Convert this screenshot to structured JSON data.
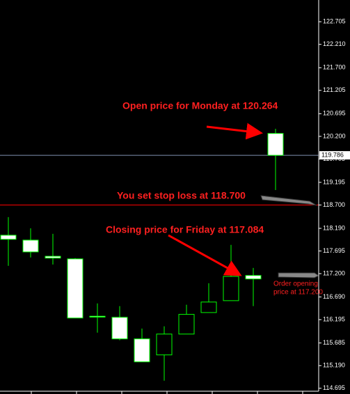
{
  "chart_data": {
    "type": "candlestick",
    "categories": [
      null,
      null,
      null,
      null,
      null,
      null,
      null,
      null,
      null,
      null,
      null,
      null,
      null
    ],
    "open": [
      118.04,
      117.933,
      117.58,
      117.523,
      116.27,
      116.246,
      115.775,
      115.425,
      115.88,
      116.35,
      116.61,
      117.16,
      120.264
    ],
    "high": [
      118.435,
      118.19,
      118.07,
      117.54,
      116.55,
      116.49,
      116.0,
      116.05,
      116.52,
      116.99,
      117.83,
      117.325,
      120.365
    ],
    "low": [
      117.371,
      117.553,
      117.4,
      116.231,
      115.91,
      115.745,
      115.273,
      114.86,
      115.88,
      116.35,
      116.61,
      116.49,
      119.027
    ],
    "close": [
      117.95,
      117.675,
      117.54,
      116.231,
      116.25,
      115.775,
      115.273,
      115.88,
      116.31,
      116.58,
      117.14,
      117.084,
      119.786
    ],
    "up_color": "#000000",
    "down_color": "#ffffff",
    "line_color": "#00ff00",
    "ylim": [
      114.57,
      123.18
    ],
    "yticks": [
      122.705,
      {
        "value": 122.21,
        "label": "122.210"
      },
      {
        "value": 121.7,
        "label": "121.700"
      },
      121.205,
      120.695,
      {
        "value": 120.2,
        "label": "120.200"
      },
      119.705,
      119.195,
      {
        "value": 118.7,
        "label": "118.700"
      },
      {
        "value": 118.19,
        "label": "118.190"
      },
      117.695,
      {
        "value": 117.2,
        "label": "117.200"
      },
      {
        "value": 116.69,
        "label": "116.690"
      },
      116.195,
      115.685,
      {
        "value": 115.19,
        "label": "115.190"
      },
      114.695
    ],
    "hlines": [
      {
        "value": 119.786,
        "color": "#7f8fb0"
      },
      {
        "value": 118.7,
        "color": "#ff0000"
      }
    ],
    "annotations": [
      "Open price for Monday at 120.264",
      "You set stop loss at 118.700",
      "Closing price for Friday at 117.084"
    ],
    "order_note": [
      "Order opening",
      "price at 117.200"
    ]
  }
}
